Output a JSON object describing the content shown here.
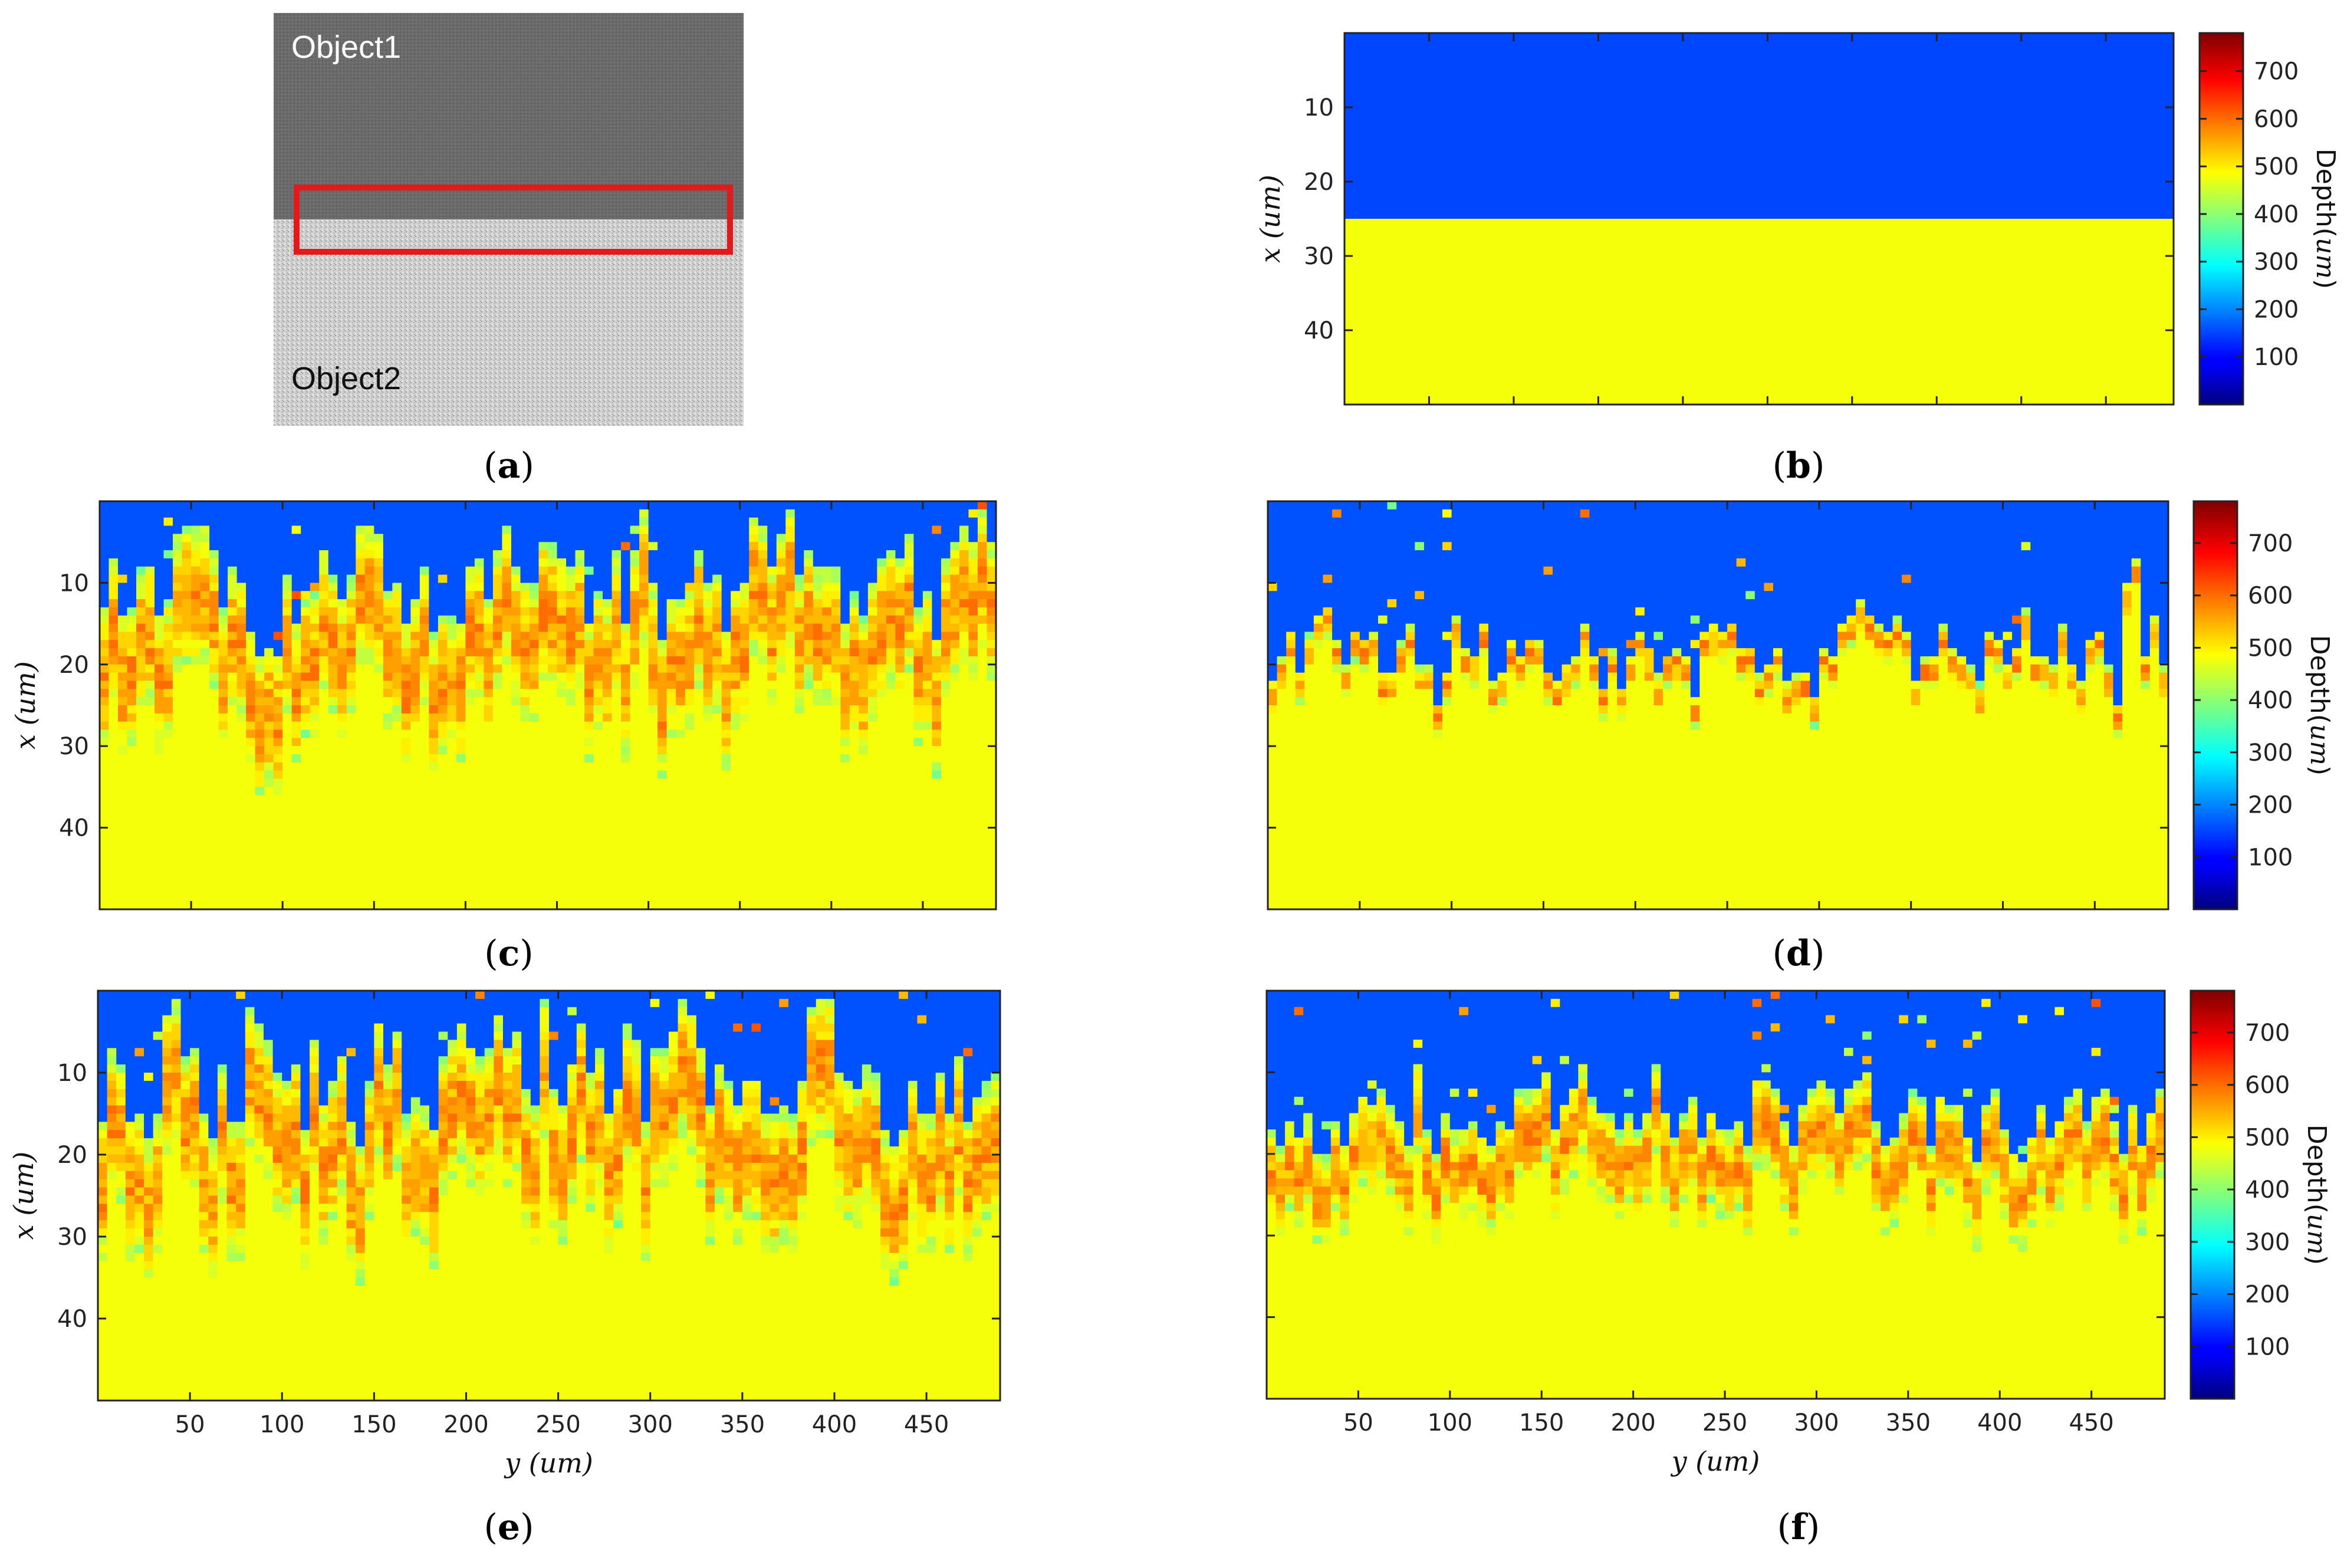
{
  "photo": {
    "label_top": "Object1",
    "label_bottom": "Object2",
    "top_color": "#6b6b6b",
    "bottom_color": "#cfcfcf",
    "box_color": "#e31a1c",
    "top_fraction": 0.5
  },
  "captions": {
    "a": "a",
    "b": "b",
    "c": "c",
    "d": "d",
    "e": "e",
    "f": "f"
  },
  "colorbar": {
    "label": "Depth(",
    "label_unit": "um",
    "label_close": ")",
    "ticks": [
      "100",
      "200",
      "300",
      "400",
      "500",
      "600",
      "700"
    ],
    "range": [
      0,
      780
    ],
    "colormap": "jet"
  },
  "chart_data": [
    {
      "id": "b",
      "type": "heatmap",
      "title": "",
      "xlabel": "",
      "ylabel_var": "x",
      "ylabel_unit": "um",
      "x_range": [
        0,
        490
      ],
      "y_range": [
        0,
        50
      ],
      "yticks": [
        "10",
        "20",
        "30",
        "40"
      ],
      "xticks": [],
      "colormap": "jet",
      "clim": [
        0,
        780
      ],
      "regions": [
        {
          "name": "object1",
          "depth": 150,
          "x_from": 0,
          "x_to": 25
        },
        {
          "name": "object2",
          "depth": 480,
          "x_from": 25,
          "x_to": 50
        }
      ]
    },
    {
      "id": "c",
      "type": "heatmap",
      "ylabel_var": "x",
      "ylabel_unit": "um",
      "x_range": [
        0,
        490
      ],
      "y_range": [
        0,
        50
      ],
      "yticks": [
        "10",
        "20",
        "30",
        "40"
      ],
      "xticks": [],
      "colormap": "jet",
      "clim": [
        0,
        780
      ],
      "boundary_mean": 11,
      "roughness": 9,
      "transition_width": 17
    },
    {
      "id": "d",
      "type": "heatmap",
      "ylabel_var": "",
      "ylabel_unit": "",
      "x_range": [
        0,
        490
      ],
      "y_range": [
        0,
        50
      ],
      "yticks": [],
      "xticks": [],
      "colormap": "jet",
      "clim": [
        0,
        780
      ],
      "boundary_mean": 19,
      "roughness": 8,
      "transition_width": 4
    },
    {
      "id": "e",
      "type": "heatmap",
      "ylabel_var": "x",
      "ylabel_unit": "um",
      "xlabel_var": "y",
      "xlabel_unit": "um",
      "x_range": [
        0,
        490
      ],
      "y_range": [
        0,
        50
      ],
      "yticks": [
        "10",
        "20",
        "30",
        "40"
      ],
      "xticks": [
        "50",
        "100",
        "150",
        "200",
        "250",
        "300",
        "350",
        "400",
        "450"
      ],
      "colormap": "jet",
      "clim": [
        0,
        780
      ],
      "boundary_mean": 11,
      "roughness": 10,
      "transition_width": 17
    },
    {
      "id": "f",
      "type": "heatmap",
      "ylabel_var": "",
      "ylabel_unit": "",
      "xlabel_var": "y",
      "xlabel_unit": "um",
      "x_range": [
        0,
        490
      ],
      "y_range": [
        0,
        50
      ],
      "yticks": [],
      "xticks": [
        "50",
        "100",
        "150",
        "200",
        "250",
        "300",
        "350",
        "400",
        "450"
      ],
      "colormap": "jet",
      "clim": [
        0,
        780
      ],
      "boundary_mean": 16,
      "roughness": 6,
      "transition_width": 11
    }
  ]
}
